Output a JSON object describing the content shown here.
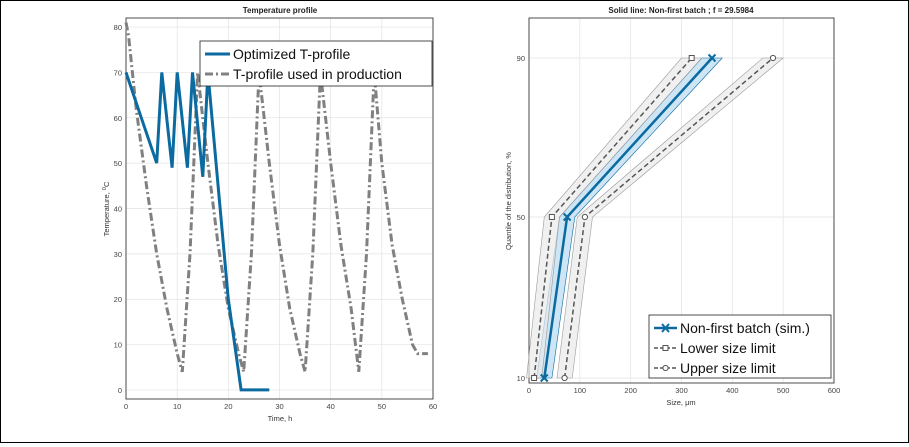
{
  "chart_data": [
    {
      "type": "line",
      "title": "Temperature profile",
      "xlabel": "Time, h",
      "ylabel": "Temperature, ",
      "ylabel_unit_sup": "0",
      "ylabel_unit": "C",
      "xlim": [
        0,
        60
      ],
      "ylim": [
        -2,
        82
      ],
      "xticks": [
        0,
        10,
        20,
        30,
        40,
        50,
        60
      ],
      "yticks": [
        0,
        10,
        20,
        30,
        40,
        50,
        60,
        70,
        80
      ],
      "grid": true,
      "legend_position": "top-right",
      "series": [
        {
          "name": "Optimized T-profile",
          "color": "#0b6aa0",
          "style": "solid",
          "x": [
            0,
            3,
            6,
            7,
            9,
            10,
            12,
            13,
            15,
            16,
            20,
            22.5,
            28
          ],
          "y": [
            70,
            60,
            50,
            70,
            49,
            70,
            49,
            70,
            47,
            70,
            20,
            0,
            0
          ]
        },
        {
          "name": "T-profile used in production",
          "color": "#808080",
          "style": "dashdot",
          "x": [
            0,
            0.5,
            2,
            4,
            6,
            8,
            10,
            11,
            12.5,
            14,
            16,
            18,
            20,
            22,
            23,
            24.5,
            26,
            28,
            30,
            32,
            34,
            35,
            36.5,
            38,
            40,
            42,
            44,
            45.5,
            47,
            48.5,
            50,
            52,
            54,
            56,
            57,
            59
          ],
          "y": [
            81,
            78,
            62,
            45,
            30,
            18,
            8,
            4,
            30,
            70,
            50,
            32,
            18,
            8,
            4,
            30,
            70,
            50,
            32,
            18,
            8,
            4,
            30,
            70,
            50,
            32,
            18,
            4,
            30,
            70,
            50,
            32,
            20,
            10,
            8,
            8
          ]
        }
      ]
    },
    {
      "type": "line",
      "title": "Solid line: Non-first batch ; f = 29.5984",
      "xlabel": "Size, ",
      "xlabel_unit": "μm",
      "ylabel": "Quantile of the distribution, %",
      "xlim": [
        0,
        600
      ],
      "ylim": [
        10,
        90
      ],
      "xticks": [
        0,
        100,
        200,
        300,
        400,
        500,
        600
      ],
      "yticks": [
        10,
        50,
        90
      ],
      "grid": true,
      "legend_position": "bottom-right",
      "series": [
        {
          "name": "Non-first batch (sim.)",
          "color": "#0b6aa0",
          "style": "solid",
          "marker": "x",
          "x": [
            30,
            75,
            360
          ],
          "y": [
            10,
            50,
            90
          ],
          "band_halfwidth": [
            15,
            15,
            20
          ]
        },
        {
          "name": "Lower size limit",
          "color": "#555555",
          "style": "dashed",
          "marker": "square",
          "x": [
            10,
            45,
            320
          ],
          "y": [
            10,
            50,
            90
          ],
          "band_halfwidth": [
            15,
            15,
            20
          ]
        },
        {
          "name": "Upper size limit",
          "color": "#555555",
          "style": "dashed",
          "marker": "circle",
          "x": [
            70,
            110,
            480
          ],
          "y": [
            10,
            50,
            90
          ],
          "band_halfwidth": [
            15,
            15,
            20
          ]
        }
      ]
    }
  ]
}
